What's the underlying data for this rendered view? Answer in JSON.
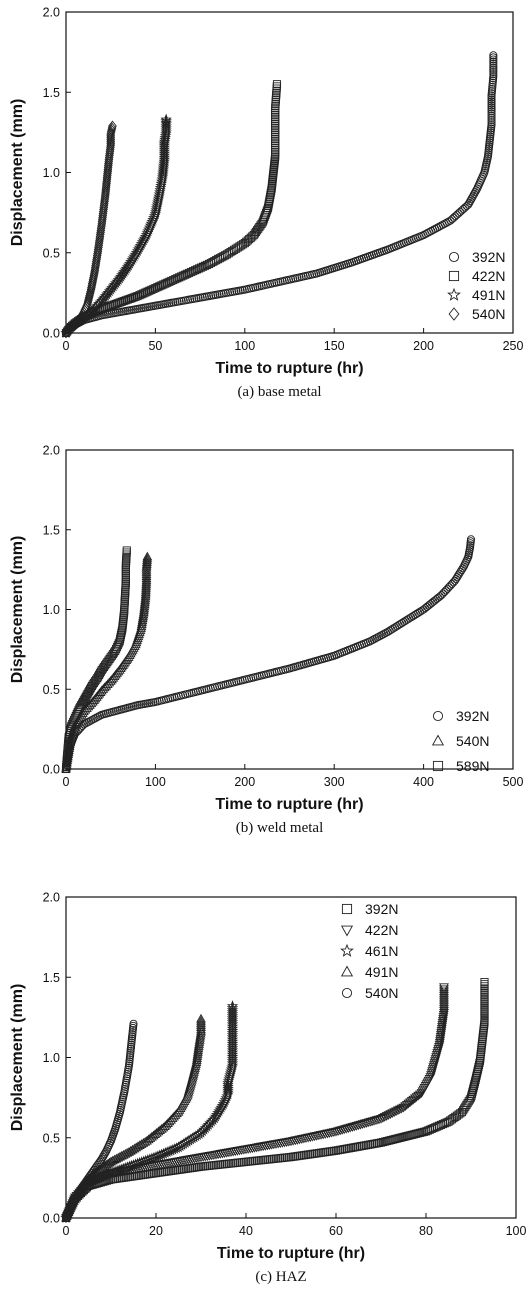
{
  "chart_data": [
    {
      "type": "scatter",
      "caption": "(a) base metal",
      "xlabel": "Time to rupture (hr)",
      "ylabel": "Displacement (mm)",
      "xlim": [
        0,
        250
      ],
      "ylim": [
        0,
        2.0
      ],
      "xticks": [
        0,
        50,
        100,
        150,
        200,
        250
      ],
      "yticks": [
        0.0,
        0.5,
        1.0,
        1.5,
        2.0
      ],
      "legend_position": "bottom-right",
      "series": [
        {
          "name": "392N",
          "marker": "circle",
          "x": [
            0,
            2,
            5,
            10,
            20,
            30,
            40,
            50,
            60,
            80,
            100,
            120,
            140,
            160,
            180,
            200,
            215,
            225,
            230,
            234,
            236,
            237,
            238,
            238,
            238,
            239,
            239
          ],
          "y": [
            0.0,
            0.03,
            0.05,
            0.08,
            0.11,
            0.13,
            0.15,
            0.17,
            0.19,
            0.23,
            0.27,
            0.32,
            0.37,
            0.44,
            0.52,
            0.61,
            0.7,
            0.8,
            0.9,
            1.0,
            1.1,
            1.2,
            1.3,
            1.38,
            1.48,
            1.6,
            1.73
          ]
        },
        {
          "name": "422N",
          "marker": "square",
          "x": [
            0,
            2,
            5,
            10,
            20,
            30,
            40,
            50,
            60,
            70,
            80,
            90,
            100,
            105,
            110,
            113,
            115,
            116,
            117,
            117,
            117,
            118
          ],
          "y": [
            0.0,
            0.03,
            0.06,
            0.1,
            0.15,
            0.19,
            0.23,
            0.28,
            0.33,
            0.38,
            0.43,
            0.49,
            0.56,
            0.61,
            0.69,
            0.78,
            0.9,
            1.0,
            1.1,
            1.25,
            1.4,
            1.55
          ]
        },
        {
          "name": "491N",
          "marker": "star",
          "x": [
            0,
            2,
            5,
            10,
            15,
            20,
            25,
            30,
            35,
            40,
            45,
            50,
            52,
            54,
            55,
            55,
            56,
            56,
            56
          ],
          "y": [
            0.0,
            0.03,
            0.06,
            0.09,
            0.14,
            0.2,
            0.27,
            0.34,
            0.42,
            0.51,
            0.61,
            0.74,
            0.85,
            0.97,
            1.08,
            1.18,
            1.25,
            1.3,
            1.33
          ]
        },
        {
          "name": "540N",
          "marker": "diamond",
          "x": [
            0,
            2,
            4,
            6,
            8,
            10,
            12,
            14,
            16,
            18,
            20,
            22,
            23,
            24,
            25,
            25,
            26
          ],
          "y": [
            0.0,
            0.03,
            0.05,
            0.07,
            0.09,
            0.13,
            0.18,
            0.27,
            0.38,
            0.52,
            0.68,
            0.86,
            0.97,
            1.08,
            1.17,
            1.24,
            1.29
          ]
        }
      ]
    },
    {
      "type": "scatter",
      "caption": "(b) weld metal",
      "xlabel": "Time to rupture (hr)",
      "ylabel": "Displacement (mm)",
      "xlim": [
        0,
        500
      ],
      "ylim": [
        0,
        2.0
      ],
      "xticks": [
        0,
        100,
        200,
        300,
        400,
        500
      ],
      "yticks": [
        0.0,
        0.5,
        1.0,
        1.5,
        2.0
      ],
      "legend_position": "bottom-right",
      "series": [
        {
          "name": "392N",
          "marker": "circle",
          "x": [
            0,
            5,
            10,
            20,
            40,
            60,
            80,
            100,
            150,
            200,
            250,
            300,
            340,
            360,
            380,
            400,
            420,
            435,
            445,
            450,
            452,
            453
          ],
          "y": [
            0.0,
            0.15,
            0.22,
            0.28,
            0.34,
            0.37,
            0.4,
            0.42,
            0.49,
            0.56,
            0.63,
            0.71,
            0.8,
            0.86,
            0.93,
            1.0,
            1.09,
            1.18,
            1.27,
            1.33,
            1.39,
            1.44
          ]
        },
        {
          "name": "540N",
          "marker": "triangle",
          "x": [
            0,
            5,
            10,
            20,
            30,
            40,
            50,
            60,
            70,
            78,
            84,
            87,
            89,
            90,
            90,
            91
          ],
          "y": [
            0.0,
            0.18,
            0.27,
            0.36,
            0.42,
            0.49,
            0.55,
            0.62,
            0.7,
            0.78,
            0.88,
            0.98,
            1.08,
            1.18,
            1.26,
            1.33
          ]
        },
        {
          "name": "589N",
          "marker": "square",
          "x": [
            0,
            3,
            6,
            10,
            15,
            20,
            25,
            30,
            35,
            40,
            45,
            50,
            55,
            60,
            63,
            65,
            66,
            67,
            67,
            68
          ],
          "y": [
            0.0,
            0.2,
            0.27,
            0.32,
            0.38,
            0.43,
            0.48,
            0.53,
            0.57,
            0.62,
            0.66,
            0.7,
            0.74,
            0.8,
            0.88,
            0.98,
            1.08,
            1.18,
            1.28,
            1.37
          ]
        }
      ]
    },
    {
      "type": "scatter",
      "caption": "(c) HAZ",
      "xlabel": "Time to rupture (hr)",
      "ylabel": "Displacement (mm)",
      "xlim": [
        0,
        100
      ],
      "ylim": [
        0,
        2.0
      ],
      "xticks": [
        0,
        20,
        40,
        60,
        80,
        100
      ],
      "yticks": [
        0.0,
        0.5,
        1.0,
        1.5,
        2.0
      ],
      "legend_position": "top-right",
      "series": [
        {
          "name": "392N",
          "marker": "square",
          "x": [
            0,
            2,
            5,
            10,
            20,
            30,
            40,
            50,
            60,
            70,
            80,
            85,
            88,
            90,
            91,
            92,
            92.5,
            93,
            93,
            93
          ],
          "y": [
            0.0,
            0.12,
            0.2,
            0.24,
            0.28,
            0.32,
            0.35,
            0.38,
            0.42,
            0.47,
            0.54,
            0.6,
            0.66,
            0.75,
            0.86,
            0.98,
            1.1,
            1.22,
            1.35,
            1.47
          ]
        },
        {
          "name": "422N",
          "marker": "triangle-down",
          "x": [
            0,
            2,
            5,
            10,
            20,
            30,
            40,
            50,
            60,
            70,
            75,
            79,
            81,
            82,
            83,
            83.5,
            84,
            84,
            84
          ],
          "y": [
            0.0,
            0.13,
            0.22,
            0.28,
            0.33,
            0.38,
            0.43,
            0.48,
            0.54,
            0.62,
            0.69,
            0.78,
            0.88,
            0.98,
            1.08,
            1.18,
            1.28,
            1.36,
            1.44
          ]
        },
        {
          "name": "461N",
          "marker": "star",
          "x": [
            0,
            2,
            4,
            6,
            10,
            15,
            20,
            25,
            30,
            33,
            35,
            36,
            36,
            37,
            37,
            37
          ],
          "y": [
            0.0,
            0.11,
            0.18,
            0.23,
            0.28,
            0.33,
            0.38,
            0.44,
            0.53,
            0.62,
            0.71,
            0.77,
            0.84,
            0.95,
            1.22,
            1.32
          ]
        },
        {
          "name": "491N",
          "marker": "triangle",
          "x": [
            0,
            2,
            4,
            6,
            8,
            10,
            14,
            18,
            22,
            25,
            27,
            28,
            29,
            29.5,
            30,
            30
          ],
          "y": [
            0.0,
            0.13,
            0.21,
            0.27,
            0.31,
            0.35,
            0.41,
            0.48,
            0.57,
            0.66,
            0.76,
            0.86,
            0.97,
            1.07,
            1.16,
            1.24
          ]
        },
        {
          "name": "540N",
          "marker": "circle",
          "x": [
            0,
            1,
            2,
            3,
            4,
            5,
            6,
            7,
            8,
            9,
            10,
            11,
            12,
            13,
            14,
            14.5,
            15
          ],
          "y": [
            0.0,
            0.07,
            0.12,
            0.17,
            0.21,
            0.25,
            0.29,
            0.33,
            0.37,
            0.42,
            0.48,
            0.56,
            0.66,
            0.79,
            0.95,
            1.08,
            1.21
          ]
        }
      ]
    }
  ]
}
